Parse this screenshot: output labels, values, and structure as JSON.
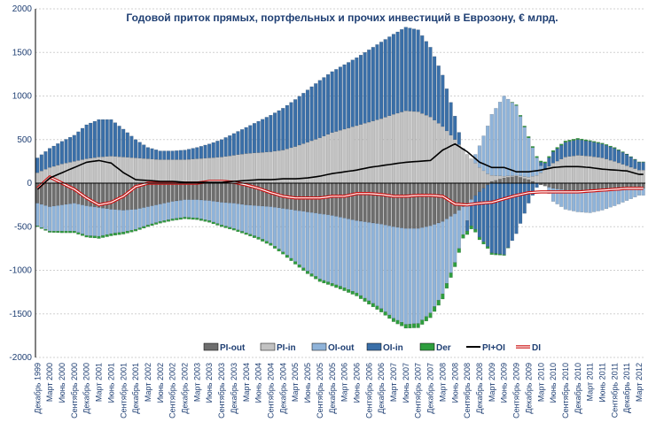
{
  "chart_data": {
    "type": "bar",
    "title": "Годовой приток прямых, портфельных и прочих инвестиций в Еврозону, € млрд.",
    "stacked": true,
    "frequency": "monthly",
    "xlabel": "",
    "ylabel": "",
    "ylim": [
      -2000,
      2000
    ],
    "yticks": [
      -2000,
      -1500,
      -1000,
      -500,
      0,
      500,
      1000,
      1500,
      2000
    ],
    "grid": true,
    "legend_position": "bottom",
    "x_tick_labels": [
      "Декабрь 1999",
      "Март 2000",
      "Июнь 2000",
      "Сентябрь 2000",
      "Декабрь 2000",
      "Март 2001",
      "Июнь 2001",
      "Сентябрь 2001",
      "Декабрь 2001",
      "Март 2002",
      "Июнь 2002",
      "Сентябрь 2002",
      "Декабрь 2002",
      "Март 2003",
      "Июнь 2003",
      "Сентябрь 2003",
      "Декабрь 2003",
      "Март 2004",
      "Июнь 2004",
      "Сентябрь 2004",
      "Декабрь 2004",
      "Март 2005",
      "Июнь 2005",
      "Сентябрь 2005",
      "Декабрь 2005",
      "Март 2006",
      "Июнь 2006",
      "Сентябрь 2006",
      "Декабрь 2006",
      "Март 2007",
      "Июнь 2007",
      "Сентябрь 2007",
      "Декабрь 2007",
      "Март 2008",
      "Июнь 2008",
      "Сентябрь 2008",
      "Декабрь 2008",
      "Март 2009",
      "Июнь 2009",
      "Сентябрь 2009",
      "Декабрь 2009",
      "Март 2010",
      "Июнь 2010",
      "Сентябрь 2010",
      "Декабрь 2010",
      "Март 2011",
      "Июнь 2011",
      "Сентябрь 2011",
      "Декабрь 2011",
      "Март 2012"
    ],
    "series_anchors_by_quarter": {
      "PI-out": [
        -230,
        -270,
        -250,
        -230,
        -260,
        -280,
        -300,
        -310,
        -300,
        -270,
        -240,
        -210,
        -190,
        -190,
        -200,
        -220,
        -230,
        -250,
        -260,
        -270,
        -290,
        -310,
        -330,
        -350,
        -370,
        -400,
        -430,
        -450,
        -470,
        -500,
        -520,
        -520,
        -490,
        -440,
        -350,
        -230,
        -100,
        20,
        60,
        80,
        40,
        -20,
        -60,
        -80,
        -90,
        -90,
        -90,
        -80,
        -70,
        -60
      ],
      "PI-in": [
        120,
        180,
        220,
        250,
        280,
        300,
        310,
        300,
        290,
        280,
        270,
        270,
        270,
        280,
        290,
        300,
        320,
        340,
        350,
        360,
        380,
        420,
        470,
        520,
        580,
        620,
        660,
        700,
        740,
        790,
        830,
        820,
        760,
        650,
        500,
        330,
        180,
        70,
        20,
        10,
        30,
        120,
        230,
        300,
        320,
        310,
        290,
        250,
        200,
        150
      ],
      "OI-out": [
        -260,
        -280,
        -300,
        -320,
        -340,
        -330,
        -280,
        -250,
        -230,
        -210,
        -200,
        -200,
        -200,
        -210,
        -230,
        -260,
        -290,
        -320,
        -360,
        -420,
        -500,
        -590,
        -680,
        -750,
        -780,
        -800,
        -830,
        -900,
        -970,
        -1050,
        -1100,
        -1090,
        -1000,
        -830,
        -560,
        -200,
        250,
        700,
        920,
        800,
        450,
        80,
        -150,
        -220,
        -240,
        -250,
        -220,
        -180,
        -130,
        -80
      ],
      "OI-in": [
        170,
        220,
        260,
        300,
        390,
        430,
        420,
        320,
        210,
        130,
        100,
        100,
        110,
        130,
        160,
        200,
        250,
        300,
        360,
        420,
        480,
        540,
        600,
        660,
        700,
        740,
        780,
        830,
        880,
        920,
        960,
        940,
        800,
        590,
        270,
        -120,
        -520,
        -800,
        -820,
        -580,
        -230,
        40,
        130,
        170,
        180,
        170,
        160,
        150,
        130,
        90
      ],
      "Der": [
        -10,
        -15,
        -20,
        -20,
        -20,
        -25,
        -25,
        -25,
        -20,
        -20,
        -20,
        -20,
        -20,
        -20,
        -20,
        -20,
        -20,
        -20,
        -25,
        -25,
        -25,
        -30,
        -30,
        -30,
        -30,
        -35,
        -35,
        -40,
        -40,
        -40,
        -45,
        -50,
        -55,
        -60,
        -50,
        -40,
        -30,
        -20,
        -10,
        10,
        15,
        15,
        15,
        15,
        15,
        10,
        10,
        10,
        5,
        5
      ],
      "PI+OI": [
        -70,
        60,
        120,
        180,
        240,
        260,
        230,
        120,
        40,
        30,
        20,
        20,
        10,
        10,
        10,
        10,
        20,
        30,
        40,
        40,
        50,
        50,
        60,
        80,
        110,
        130,
        150,
        180,
        200,
        220,
        240,
        250,
        260,
        380,
        450,
        360,
        240,
        180,
        180,
        130,
        130,
        150,
        180,
        190,
        190,
        180,
        160,
        150,
        140,
        100
      ],
      "DI": [
        -60,
        70,
        0,
        -70,
        -170,
        -250,
        -220,
        -150,
        -40,
        0,
        0,
        0,
        0,
        0,
        20,
        20,
        10,
        -20,
        -60,
        -110,
        -150,
        -170,
        -170,
        -170,
        -150,
        -150,
        -120,
        -120,
        -130,
        -150,
        -150,
        -140,
        -140,
        -150,
        -240,
        -250,
        -230,
        -220,
        -180,
        -140,
        -110,
        -100,
        -100,
        -100,
        -100,
        -90,
        -80,
        -70,
        -60,
        -60
      ]
    },
    "series": [
      {
        "name": "PI-out",
        "kind": "bar",
        "color": "#6e6e6e"
      },
      {
        "name": "PI-in",
        "kind": "bar",
        "color": "#c2c2c2"
      },
      {
        "name": "OI-out",
        "kind": "bar",
        "color": "#8fb3d9"
      },
      {
        "name": "OI-in",
        "kind": "bar",
        "color": "#3a6fa8"
      },
      {
        "name": "Der",
        "kind": "bar",
        "color": "#2e9e3e"
      },
      {
        "name": "PI+OI",
        "kind": "line",
        "color": "#000000"
      },
      {
        "name": "DI",
        "kind": "line",
        "color": "#cc1111"
      }
    ]
  }
}
